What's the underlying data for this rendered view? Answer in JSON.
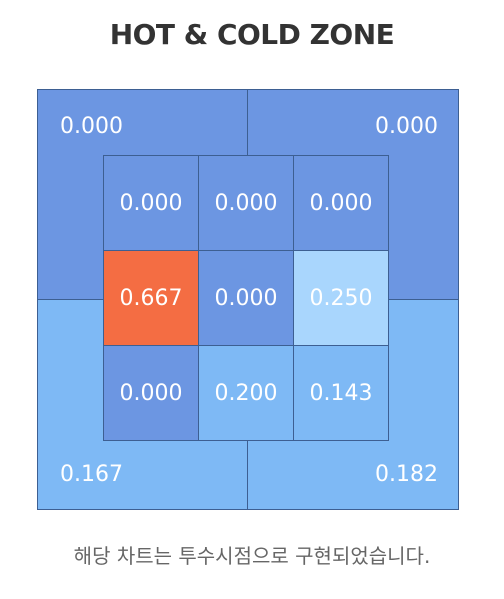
{
  "title": "HOT & COLD ZONE",
  "colors": {
    "hot_orange": "#f46d43",
    "dark_blue": "#6c96e2",
    "mid_blue": "#7eb9f5",
    "light_blue": "#a9d6fd",
    "border": "#3d5f92"
  },
  "outer_zones": {
    "top_left": {
      "value": "0.000",
      "color": "dark_blue"
    },
    "top_right": {
      "value": "0.000",
      "color": "dark_blue"
    },
    "bottom_left": {
      "value": "0.167",
      "color": "mid_blue"
    },
    "bottom_right": {
      "value": "0.182",
      "color": "mid_blue"
    }
  },
  "inner_grid": [
    [
      {
        "value": "0.000",
        "color": "dark_blue"
      },
      {
        "value": "0.000",
        "color": "dark_blue"
      },
      {
        "value": "0.000",
        "color": "dark_blue"
      }
    ],
    [
      {
        "value": "0.667",
        "color": "hot_orange"
      },
      {
        "value": "0.000",
        "color": "dark_blue"
      },
      {
        "value": "0.250",
        "color": "light_blue"
      }
    ],
    [
      {
        "value": "0.000",
        "color": "dark_blue"
      },
      {
        "value": "0.200",
        "color": "mid_blue"
      },
      {
        "value": "0.143",
        "color": "mid_blue"
      }
    ]
  ],
  "footnote": "해당 차트는 투수시점으로 구현되었습니다."
}
